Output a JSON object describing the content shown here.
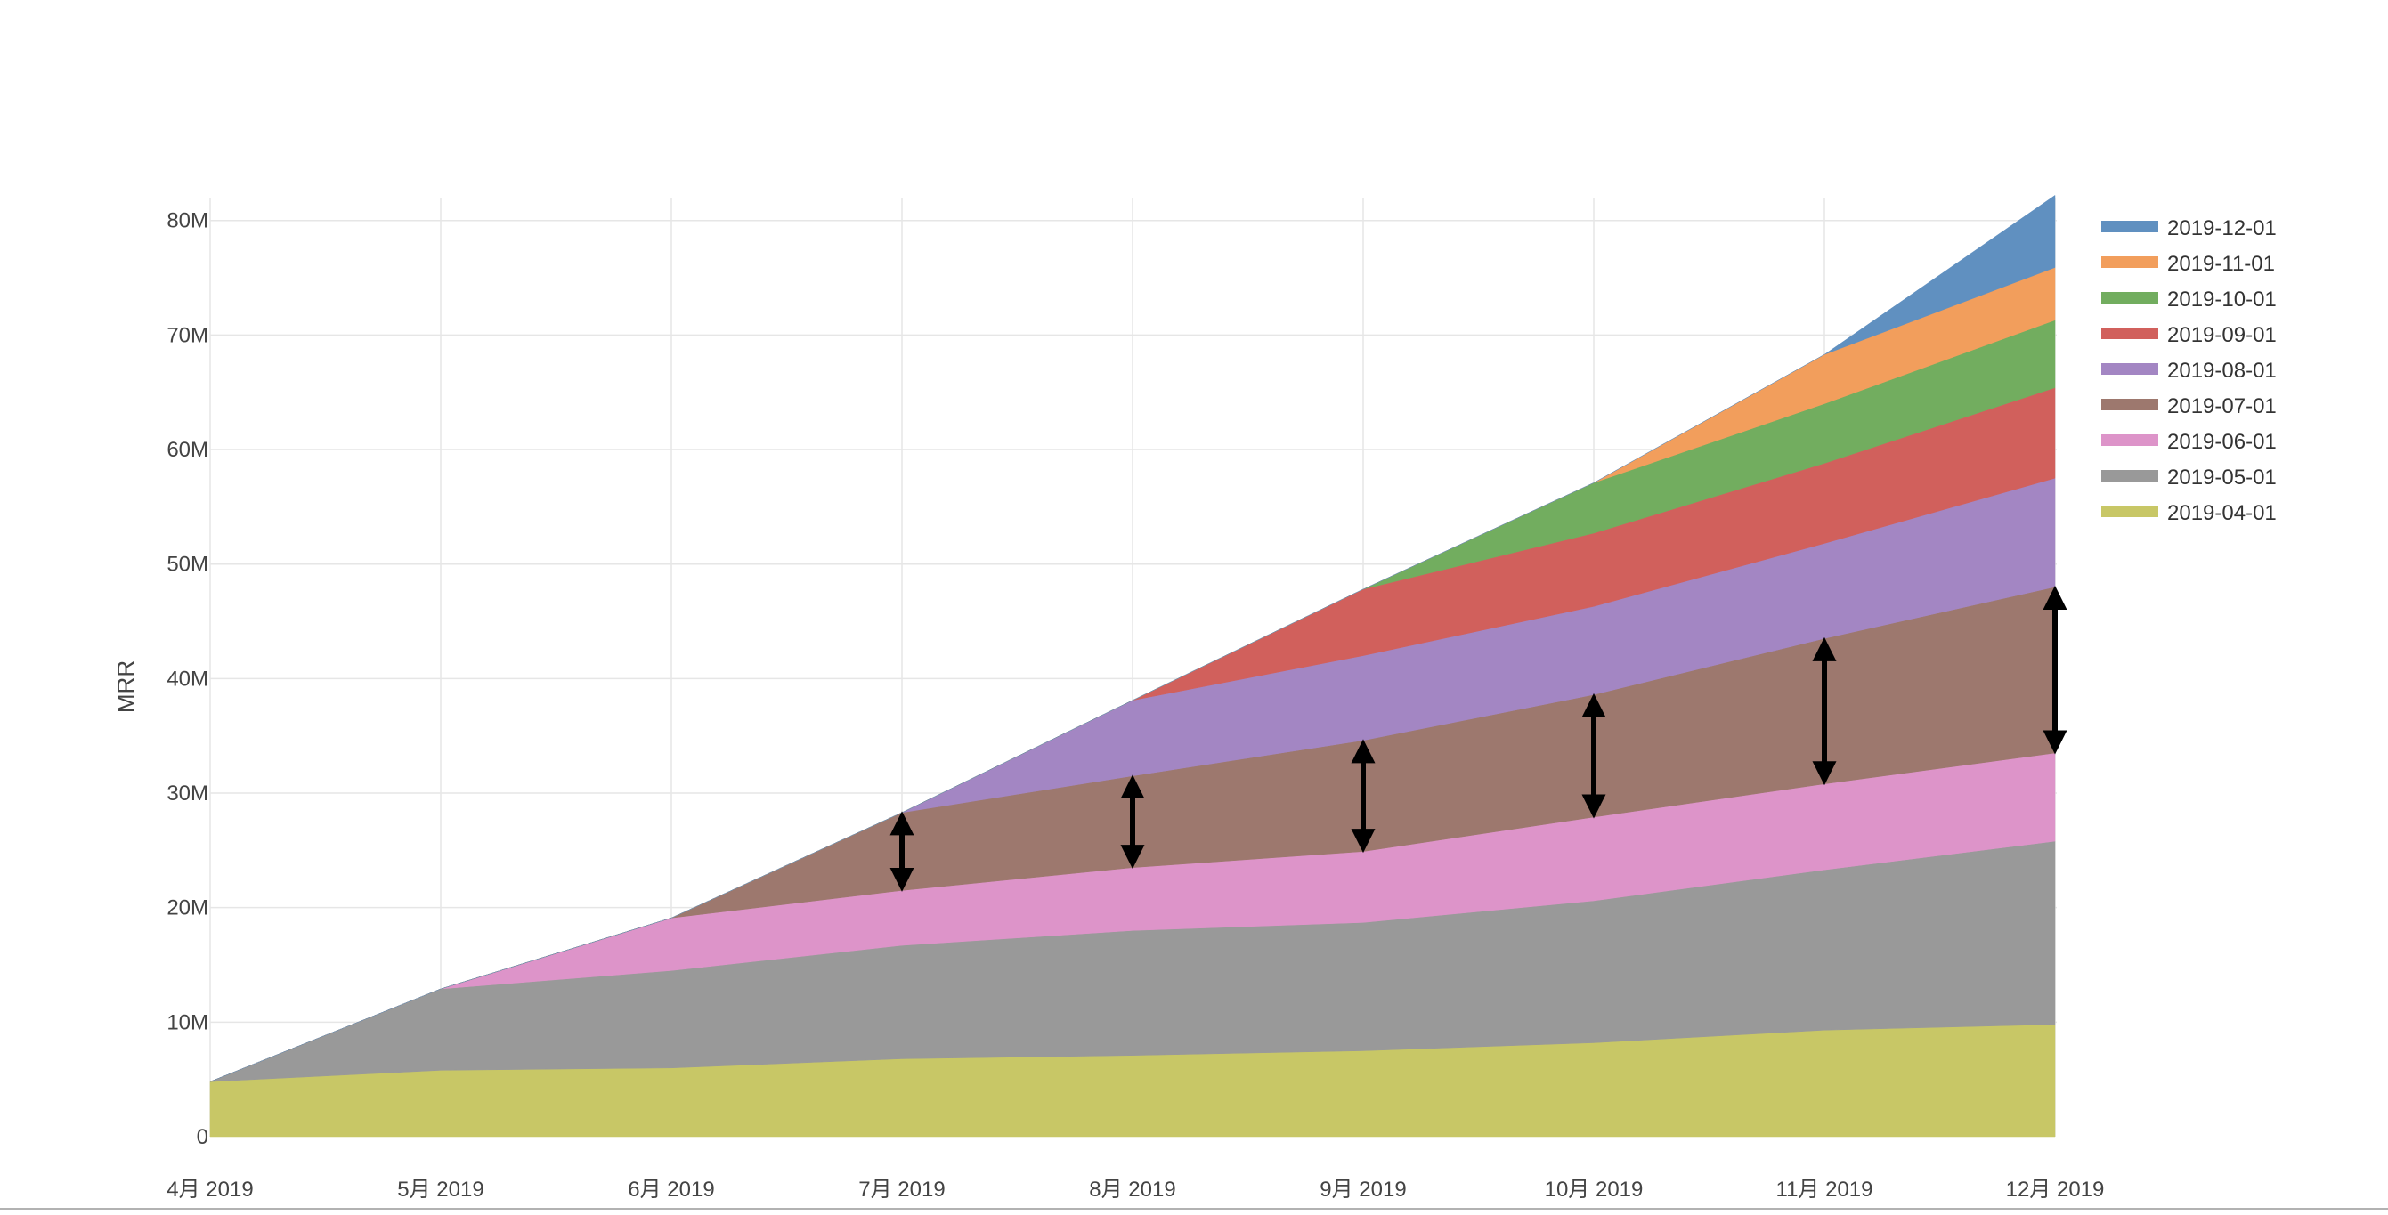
{
  "chart_data": {
    "type": "area",
    "stacked": true,
    "ylabel": "MRR",
    "ylim": [
      0,
      82000000
    ],
    "grid": true,
    "legend_position": "top-right",
    "x": [
      "4月 2019",
      "5月 2019",
      "6月 2019",
      "7月 2019",
      "8月 2019",
      "9月 2019",
      "10月 2019",
      "11月 2019",
      "12月 2019"
    ],
    "y_ticks": [
      {
        "value": 0,
        "label": "0"
      },
      {
        "value": 10000000,
        "label": "10M"
      },
      {
        "value": 20000000,
        "label": "20M"
      },
      {
        "value": 30000000,
        "label": "30M"
      },
      {
        "value": 40000000,
        "label": "40M"
      },
      {
        "value": 50000000,
        "label": "50M"
      },
      {
        "value": 60000000,
        "label": "60M"
      },
      {
        "value": 70000000,
        "label": "70M"
      },
      {
        "value": 80000000,
        "label": "80M"
      }
    ],
    "series": [
      {
        "name": "2019-04-01",
        "color": "#c8c766",
        "values": [
          4800000,
          5800000,
          6000000,
          6800000,
          7100000,
          7500000,
          8200000,
          9300000,
          9800000
        ]
      },
      {
        "name": "2019-05-01",
        "color": "#999999",
        "values": [
          0,
          7100000,
          8500000,
          9900000,
          10900000,
          11200000,
          12400000,
          14000000,
          16000000
        ]
      },
      {
        "name": "2019-06-01",
        "color": "#dd94c9",
        "values": [
          0,
          0,
          4600000,
          4800000,
          5500000,
          6200000,
          7300000,
          7500000,
          7700000
        ]
      },
      {
        "name": "2019-07-01",
        "color": "#9d786e",
        "values": [
          0,
          0,
          0,
          6800000,
          8000000,
          9700000,
          10700000,
          12700000,
          14500000
        ]
      },
      {
        "name": "2019-08-01",
        "color": "#a386c3",
        "values": [
          0,
          0,
          0,
          0,
          6600000,
          7400000,
          7700000,
          8300000,
          9500000
        ]
      },
      {
        "name": "2019-09-01",
        "color": "#d1605c",
        "values": [
          0,
          0,
          0,
          0,
          0,
          5800000,
          6400000,
          7000000,
          7900000
        ]
      },
      {
        "name": "2019-10-01",
        "color": "#72ad5f",
        "values": [
          0,
          0,
          0,
          0,
          0,
          0,
          4400000,
          5200000,
          5900000
        ]
      },
      {
        "name": "2019-11-01",
        "color": "#f29e5c",
        "values": [
          0,
          0,
          0,
          0,
          0,
          0,
          0,
          4300000,
          4600000
        ]
      },
      {
        "name": "2019-12-01",
        "color": "#6090c0",
        "values": [
          0,
          0,
          0,
          0,
          0,
          0,
          0,
          0,
          6300000
        ]
      }
    ],
    "annotations": {
      "type": "double-headed-arrow",
      "color": "#000000",
      "spans_series": "2019-07-01",
      "at_x": [
        "7月 2019",
        "8月 2019",
        "9月 2019",
        "10月 2019",
        "11月 2019",
        "12月 2019"
      ]
    }
  }
}
